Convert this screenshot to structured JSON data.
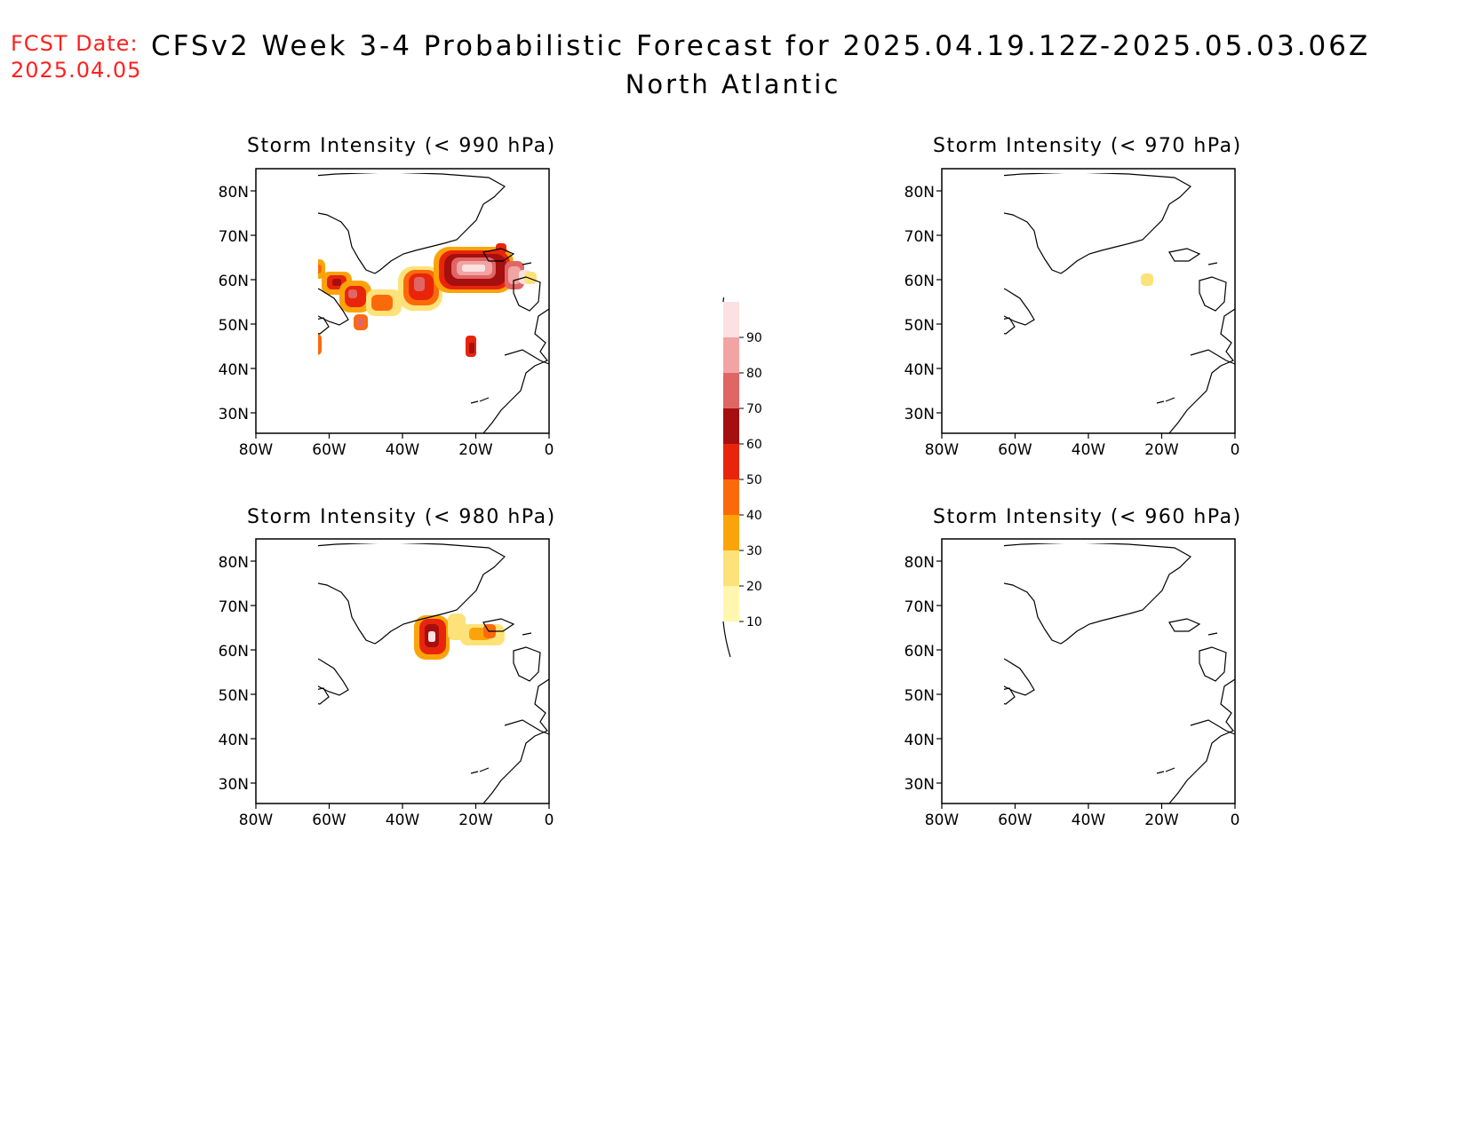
{
  "header": {
    "fcst_label": "FCST Date:",
    "fcst_date": "2025.04.05",
    "title": "CFSv2 Week 3-4 Probabilistic Forecast for 2025.04.19.12Z-2025.05.03.06Z",
    "subtitle": "North Atlantic"
  },
  "panels": [
    {
      "title": "Storm Intensity (< 990 hPa)"
    },
    {
      "title": "Storm Intensity (< 970 hPa)"
    },
    {
      "title": "Storm Intensity (< 980 hPa)"
    },
    {
      "title": "Storm Intensity (< 960 hPa)"
    }
  ],
  "axes": {
    "lat_labels": [
      "80N",
      "70N",
      "60N",
      "50N",
      "40N",
      "30N"
    ],
    "lon_labels": [
      "80W",
      "60W",
      "40W",
      "20W",
      "0"
    ]
  },
  "colorbar": {
    "labels": [
      "10",
      "20",
      "30",
      "40",
      "50",
      "60",
      "70",
      "80",
      "90"
    ],
    "colors": [
      "#fff7b0",
      "#fde27a",
      "#fba40a",
      "#fb6a0a",
      "#e8250a",
      "#a50f0f",
      "#e06666",
      "#f2a4a4",
      "#fbe1e1"
    ]
  }
}
